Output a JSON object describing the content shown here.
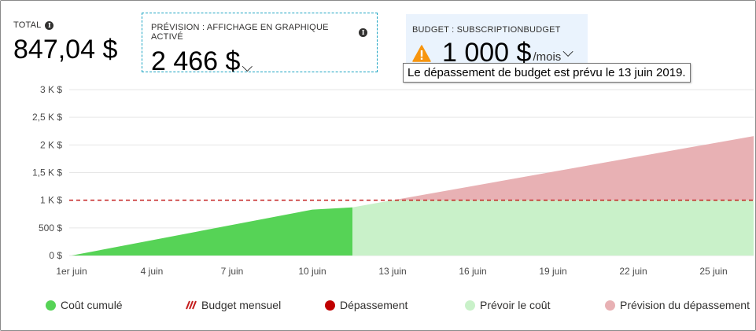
{
  "kpis": {
    "total": {
      "label": "TOTAL",
      "value": "847,04 $"
    },
    "forecast": {
      "label": "PRÉVISION : AFFICHAGE EN GRAPHIQUE ACTIVÉ",
      "value": "2 466 $"
    },
    "budget": {
      "label": "BUDGET : SUBSCRIPTIONBUDGET",
      "value": "1 000 $",
      "unit": "/mois"
    }
  },
  "tooltip": "Le dépassement de budget est prévu le 13 juin 2019.",
  "colors": {
    "actual": "#56d356",
    "forecast": "#c9f1c9",
    "overage_forecast": "#e8b1b4",
    "budget_line": "#c41e1e",
    "overage": "#c00000",
    "warning": "#f7950f"
  },
  "chart_data": {
    "type": "area",
    "title": "",
    "xlabel": "",
    "ylabel": "",
    "x_ticks": [
      {
        "day": 1,
        "label": "1er juin"
      },
      {
        "day": 4,
        "label": "4 juin"
      },
      {
        "day": 7,
        "label": "7 juin"
      },
      {
        "day": 10,
        "label": "10 juin"
      },
      {
        "day": 13,
        "label": "13 juin"
      },
      {
        "day": 16,
        "label": "16 juin"
      },
      {
        "day": 19,
        "label": "19 juin"
      },
      {
        "day": 22,
        "label": "22 juin"
      },
      {
        "day": 25,
        "label": "25 juin"
      }
    ],
    "xlim": [
      1,
      26.5
    ],
    "y_ticks": [
      {
        "value": 0,
        "label": "0 $"
      },
      {
        "value": 500,
        "label": "500 $"
      },
      {
        "value": 1000,
        "label": "1 K $"
      },
      {
        "value": 1500,
        "label": "1,5 K $"
      },
      {
        "value": 2000,
        "label": "2 K $"
      },
      {
        "value": 2500,
        "label": "2,5 K $"
      },
      {
        "value": 3000,
        "label": "3 K $"
      }
    ],
    "ylim": [
      0,
      3000
    ],
    "grid": true,
    "budget": 1000,
    "series": [
      {
        "name": "Coût cumulé",
        "points": [
          [
            1,
            0
          ],
          [
            10,
            830
          ],
          [
            11.5,
            870
          ]
        ]
      },
      {
        "name": "Prévoir le coût",
        "points": [
          [
            11.5,
            870
          ],
          [
            13,
            1000
          ],
          [
            26.5,
            2160
          ]
        ]
      }
    ],
    "legend": {
      "position": "bottom",
      "entries": [
        "Coût cumulé",
        "Budget mensuel",
        "Dépassement",
        "Prévoir le coût",
        "Prévision du dépassement"
      ]
    }
  }
}
